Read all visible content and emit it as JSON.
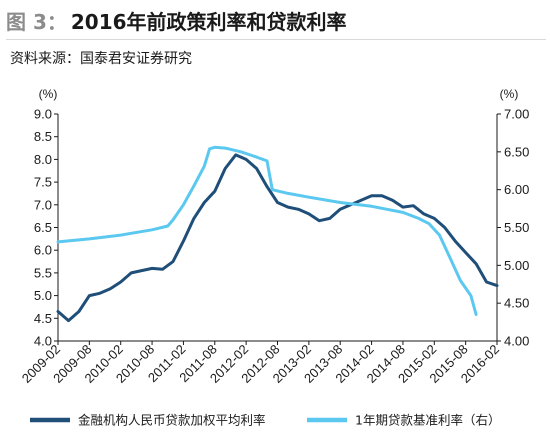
{
  "header": {
    "figure_label": "图 3：",
    "title": "2016年前政策利率和贷款利率",
    "source": "资料来源：国泰君安证券研究"
  },
  "colors": {
    "series_dark": "#1f4e79",
    "series_light": "#5bc8f0",
    "axis": "#1a1a1a"
  },
  "chart_data": {
    "type": "line",
    "title": "2016年前政策利率和贷款利率",
    "left_axis": {
      "unit": "(%)",
      "ylim": [
        4.0,
        9.0
      ],
      "ticks": [
        "4.0",
        "4.5",
        "5.0",
        "5.5",
        "6.0",
        "6.5",
        "7.0",
        "7.5",
        "8.0",
        "8.5",
        "9.0"
      ]
    },
    "right_axis": {
      "unit": "(%)",
      "ylim": [
        4.0,
        7.0
      ],
      "ticks": [
        "4.00",
        "4.50",
        "5.00",
        "5.50",
        "6.00",
        "6.50",
        "7.00"
      ]
    },
    "x_ticks": [
      "2009-02",
      "2009-08",
      "2010-02",
      "2010-08",
      "2011-02",
      "2011-08",
      "2012-02",
      "2012-08",
      "2013-02",
      "2013-08",
      "2014-02",
      "2014-08",
      "2015-02",
      "2015-08",
      "2016-02"
    ],
    "series": [
      {
        "name": "金融机构人民币贷款加权平均利率",
        "axis": "left",
        "points": [
          [
            "2009-02",
            4.65
          ],
          [
            "2009-04",
            4.45
          ],
          [
            "2009-06",
            4.65
          ],
          [
            "2009-08",
            5.0
          ],
          [
            "2009-10",
            5.05
          ],
          [
            "2009-12",
            5.15
          ],
          [
            "2010-02",
            5.3
          ],
          [
            "2010-04",
            5.5
          ],
          [
            "2010-06",
            5.55
          ],
          [
            "2010-08",
            5.6
          ],
          [
            "2010-10",
            5.58
          ],
          [
            "2010-12",
            5.75
          ],
          [
            "2011-02",
            6.2
          ],
          [
            "2011-04",
            6.7
          ],
          [
            "2011-06",
            7.05
          ],
          [
            "2011-08",
            7.3
          ],
          [
            "2011-10",
            7.8
          ],
          [
            "2011-12",
            8.1
          ],
          [
            "2012-02",
            8.0
          ],
          [
            "2012-04",
            7.8
          ],
          [
            "2012-06",
            7.4
          ],
          [
            "2012-08",
            7.05
          ],
          [
            "2012-10",
            6.95
          ],
          [
            "2012-12",
            6.9
          ],
          [
            "2013-02",
            6.8
          ],
          [
            "2013-04",
            6.65
          ],
          [
            "2013-06",
            6.7
          ],
          [
            "2013-08",
            6.9
          ],
          [
            "2013-10",
            7.0
          ],
          [
            "2013-12",
            7.1
          ],
          [
            "2014-02",
            7.2
          ],
          [
            "2014-04",
            7.2
          ],
          [
            "2014-06",
            7.1
          ],
          [
            "2014-08",
            6.95
          ],
          [
            "2014-10",
            6.98
          ],
          [
            "2014-12",
            6.8
          ],
          [
            "2015-02",
            6.7
          ],
          [
            "2015-04",
            6.5
          ],
          [
            "2015-06",
            6.2
          ],
          [
            "2015-08",
            5.95
          ],
          [
            "2015-10",
            5.7
          ],
          [
            "2015-12",
            5.3
          ],
          [
            "2016-02",
            5.22
          ]
        ]
      },
      {
        "name": "1年期贷款基准利率（右）",
        "axis": "right",
        "points": [
          [
            "2009-02",
            5.31
          ],
          [
            "2009-08",
            5.35
          ],
          [
            "2010-02",
            5.4
          ],
          [
            "2010-08",
            5.47
          ],
          [
            "2010-11",
            5.52
          ],
          [
            "2010-12",
            5.6
          ],
          [
            "2011-02",
            5.8
          ],
          [
            "2011-04",
            6.05
          ],
          [
            "2011-06",
            6.31
          ],
          [
            "2011-07",
            6.54
          ],
          [
            "2011-08",
            6.56
          ],
          [
            "2011-10",
            6.55
          ],
          [
            "2012-01",
            6.5
          ],
          [
            "2012-04",
            6.43
          ],
          [
            "2012-06",
            6.38
          ],
          [
            "2012-07",
            6.0
          ],
          [
            "2012-10",
            5.95
          ],
          [
            "2013-02",
            5.9
          ],
          [
            "2013-08",
            5.83
          ],
          [
            "2014-02",
            5.78
          ],
          [
            "2014-08",
            5.7
          ],
          [
            "2014-11",
            5.62
          ],
          [
            "2015-01",
            5.55
          ],
          [
            "2015-03",
            5.4
          ],
          [
            "2015-05",
            5.1
          ],
          [
            "2015-07",
            4.8
          ],
          [
            "2015-09",
            4.6
          ],
          [
            "2015-10",
            4.35
          ]
        ]
      }
    ],
    "legend": {
      "placement": "bottom"
    },
    "grid": false
  }
}
